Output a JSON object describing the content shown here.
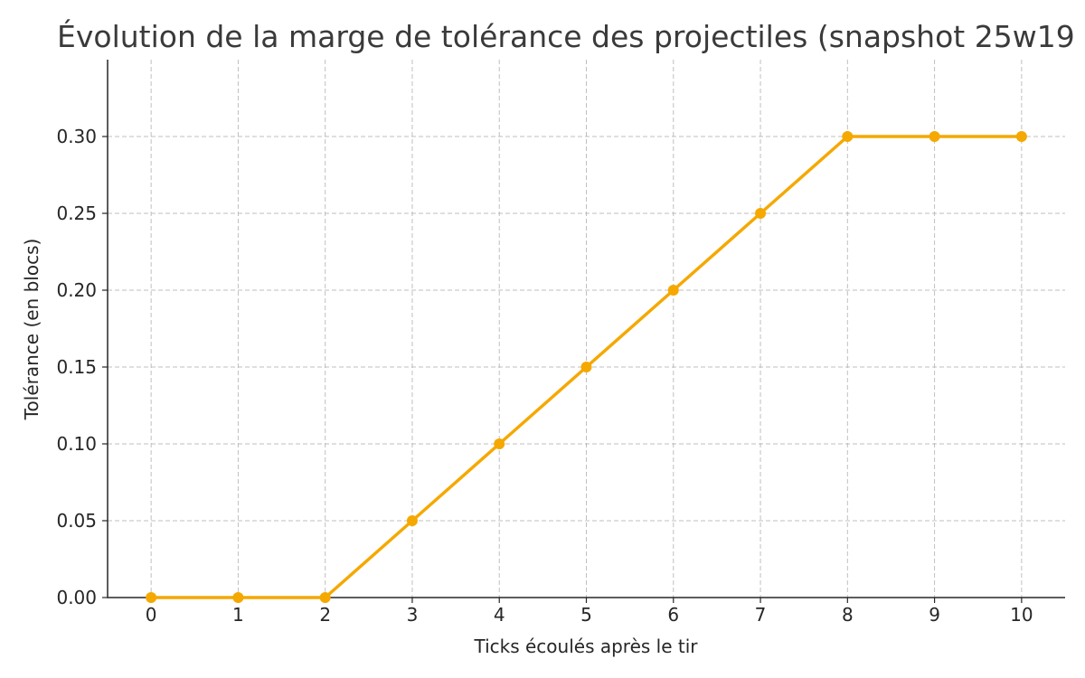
{
  "chart_data": {
    "type": "line",
    "title": "Évolution de la marge de tolérance des projectiles (snapshot 25w19",
    "xlabel": "Ticks écoulés après le tir",
    "ylabel": "Tolérance (en blocs)",
    "x": [
      0,
      1,
      2,
      3,
      4,
      5,
      6,
      7,
      8,
      9,
      10
    ],
    "series": [
      {
        "name": "",
        "values": [
          0.0,
          0.0,
          0.0,
          0.05,
          0.1,
          0.15,
          0.2,
          0.25,
          0.3,
          0.3,
          0.3
        ],
        "color": "#f5a800"
      }
    ],
    "xlim": [
      -0.5,
      10.5
    ],
    "ylim": [
      0.0,
      0.35
    ],
    "xticks": [
      "0",
      "1",
      "2",
      "3",
      "4",
      "5",
      "6",
      "7",
      "8",
      "9",
      "10"
    ],
    "yticks": [
      "0.00",
      "0.05",
      "0.10",
      "0.15",
      "0.20",
      "0.25",
      "0.30"
    ],
    "grid": true,
    "legend": "none"
  }
}
